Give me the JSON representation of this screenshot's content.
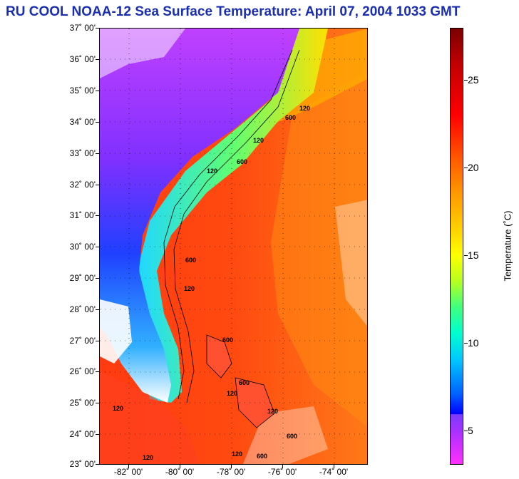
{
  "title": "RU COOL  NOAA-12  Sea Surface Temperature:  April 07, 2004 1033 GMT",
  "map": {
    "lat_labels": [
      "37˚ 00'",
      "36˚ 00'",
      "35˚ 00'",
      "34˚ 00'",
      "33˚ 00'",
      "32˚ 00'",
      "31˚ 00'",
      "30˚ 00'",
      "29˚ 00'",
      "28˚ 00'",
      "27˚ 00'",
      "26˚ 00'",
      "25˚ 00'",
      "24˚ 00'",
      "23˚ 00'"
    ],
    "lon_labels": [
      "-82˚ 00'",
      "-80˚ 00'",
      "-78˚ 00'",
      "-76˚ 00'",
      "-74˚ 00'"
    ],
    "contour_labels": [
      "120",
      "600",
      "120",
      "600",
      "120",
      "600",
      "120",
      "600",
      "120",
      "600",
      "120",
      "120",
      "600",
      "120",
      "120",
      "600"
    ],
    "colors": {
      "ocean_warm": "#ff5a12",
      "shelf": "#40ff80",
      "land": "#5a2cff",
      "cloud": "#ffffff"
    }
  },
  "colorbar": {
    "tick_labels": [
      "25",
      "20",
      "15",
      "10",
      "5"
    ],
    "unit_label": "Temperature (˚C)"
  }
}
